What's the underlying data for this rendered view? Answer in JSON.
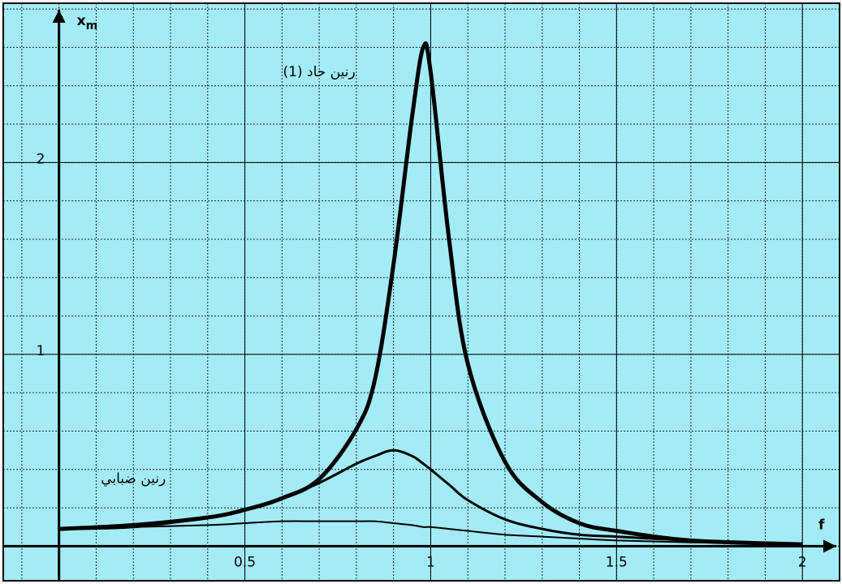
{
  "chart_data": {
    "type": "line",
    "x_label": "f",
    "y_label": "x",
    "y_label_subscript": "m",
    "annotations": [
      "رنين حاد (1)",
      "رنين ضبابي"
    ],
    "x": [
      0,
      0.2,
      0.4,
      0.5,
      0.6,
      0.7,
      0.8,
      0.85,
      0.9,
      0.95,
      0.98,
      1,
      1.05,
      1.1,
      1.2,
      1.3,
      1.4,
      1.5,
      1.7,
      2
    ],
    "series": [
      {
        "color": "#000000",
        "width": 5,
        "values": [
          0.09,
          0.11,
          0.15,
          0.19,
          0.25,
          0.35,
          0.61,
          0.87,
          1.47,
          2.24,
          2.6,
          2.47,
          1.59,
          0.95,
          0.44,
          0.23,
          0.12,
          0.08,
          0.03,
          0.01
        ]
      },
      {
        "color": "#000000",
        "width": 3,
        "values": [
          0.09,
          0.1,
          0.15,
          0.19,
          0.25,
          0.33,
          0.43,
          0.47,
          0.5,
          0.47,
          0.43,
          0.4,
          0.32,
          0.24,
          0.14,
          0.09,
          0.06,
          0.05,
          0.03,
          0.01
        ]
      },
      {
        "color": "#000000",
        "width": 2,
        "values": [
          0.09,
          0.1,
          0.11,
          0.12,
          0.13,
          0.13,
          0.13,
          0.13,
          0.12,
          0.11,
          0.1,
          0.1,
          0.09,
          0.08,
          0.06,
          0.05,
          0.04,
          0.03,
          0.02,
          0.01
        ]
      }
    ],
    "xlim": [
      -0.15,
      2.1
    ],
    "ylim": [
      -0.18,
      2.83
    ],
    "xticks": [
      0.5,
      1,
      1.5,
      2
    ],
    "yticks": [
      1,
      2
    ],
    "grid": true,
    "background": "#a3ecf7"
  }
}
